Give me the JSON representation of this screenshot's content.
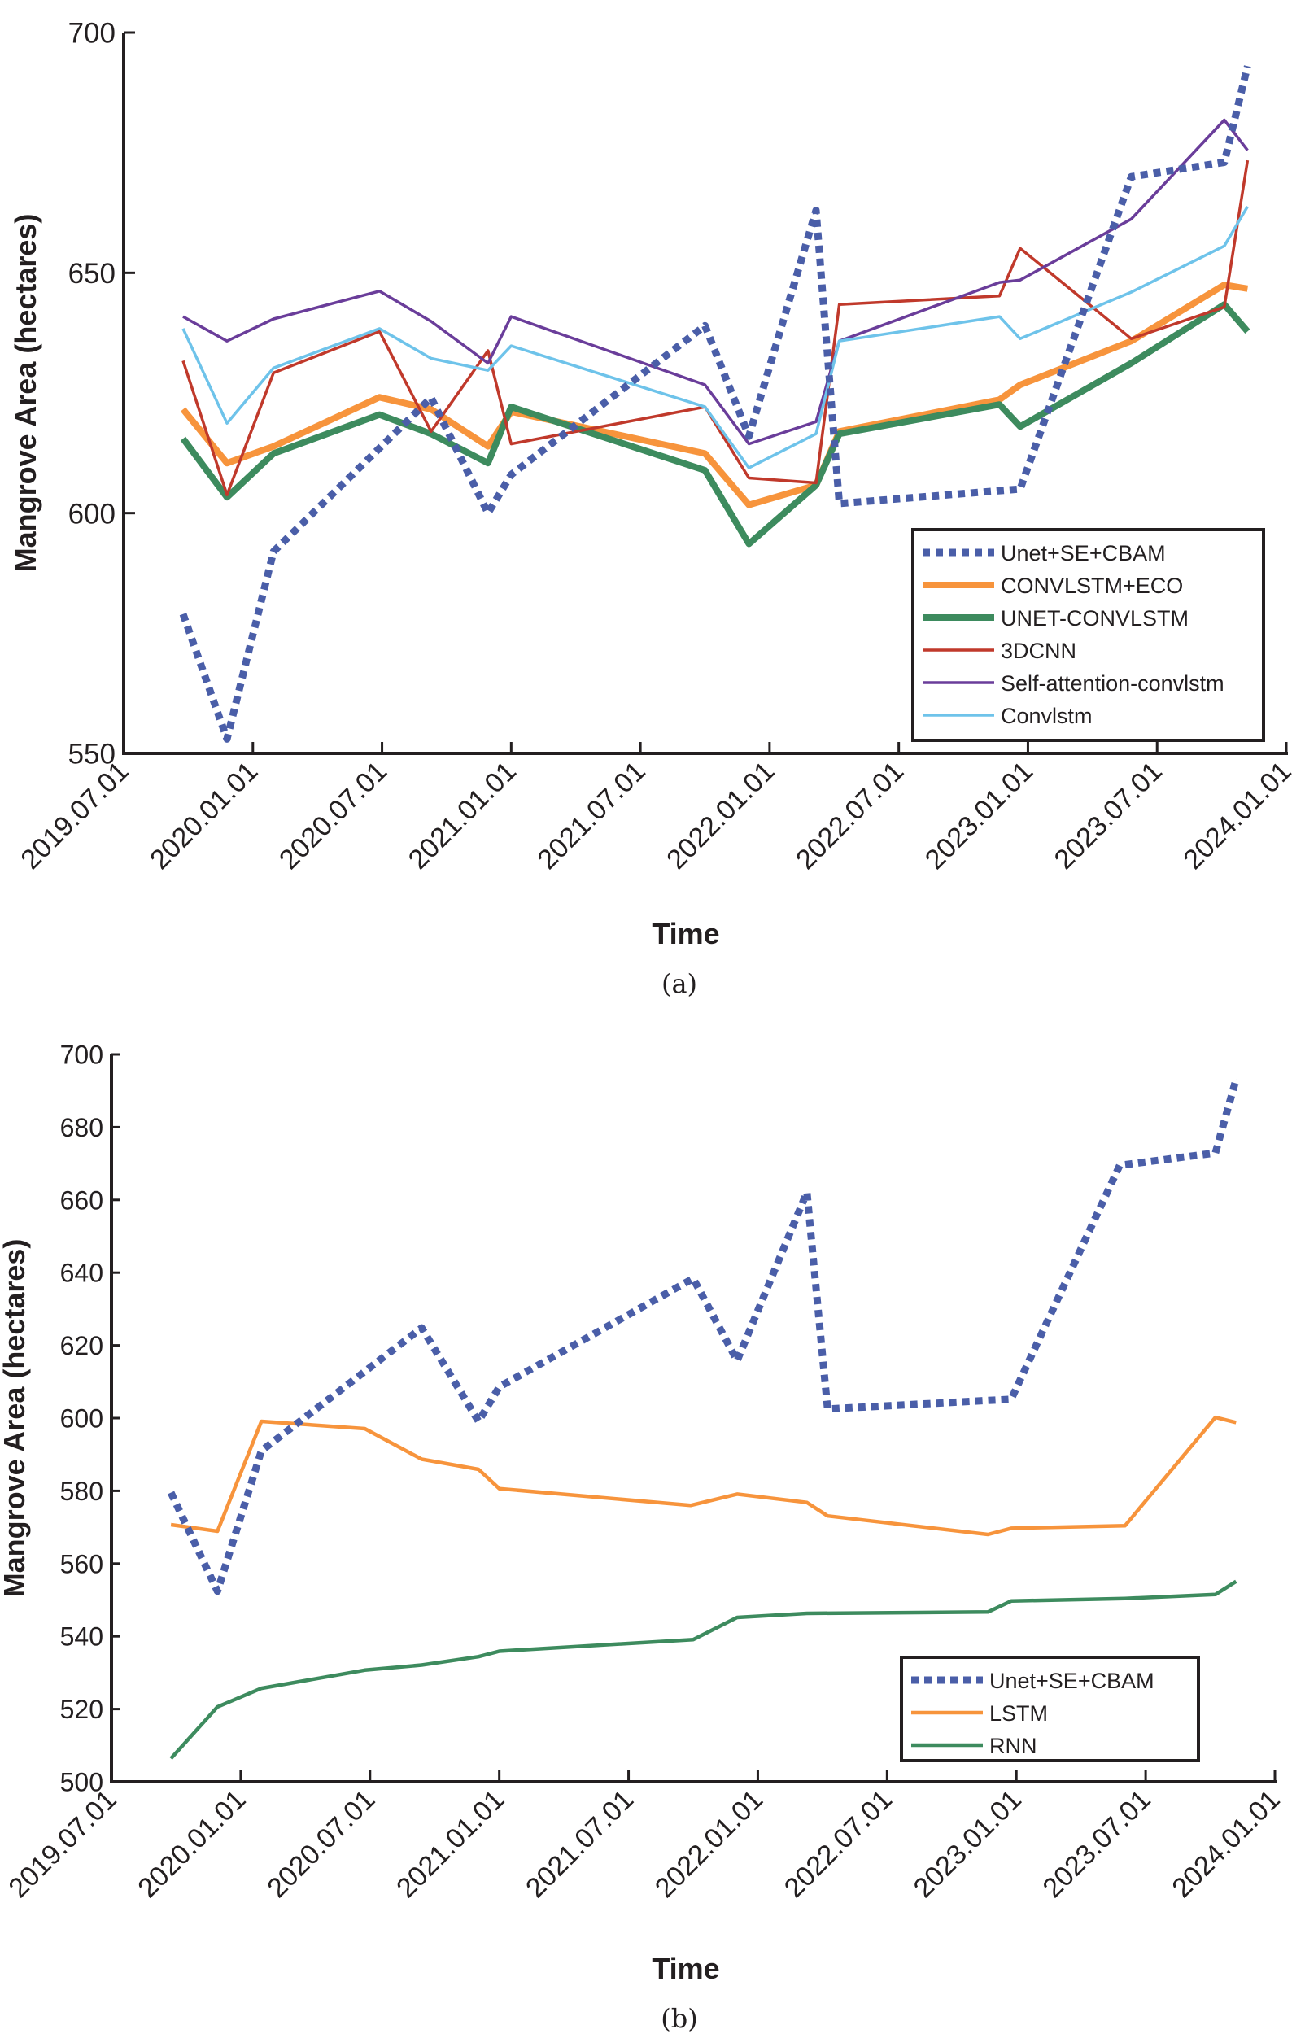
{
  "chart_data": [
    {
      "id": "a",
      "type": "line",
      "caption": "(a)",
      "xlabel": "Time",
      "ylabel": "Mangrove Area (hectares)",
      "xlim": [
        2019.5,
        2024.0
      ],
      "ylim": [
        550,
        700
      ],
      "yticks": [
        550,
        600,
        650,
        700
      ],
      "xticks": [
        {
          "value": 2019.5,
          "label": "2019.07.01"
        },
        {
          "value": 2020.0,
          "label": "2020.01.01"
        },
        {
          "value": 2020.5,
          "label": "2020.07.01"
        },
        {
          "value": 2021.0,
          "label": "2021.01.01"
        },
        {
          "value": 2021.5,
          "label": "2021.07.01"
        },
        {
          "value": 2022.0,
          "label": "2022.01.01"
        },
        {
          "value": 2022.5,
          "label": "2022.07.01"
        },
        {
          "value": 2023.0,
          "label": "2023.01.01"
        },
        {
          "value": 2023.5,
          "label": "2023.07.01"
        },
        {
          "value": 2024.0,
          "label": "2024.01.01"
        }
      ],
      "legend_position": "bottom-right",
      "grid": false,
      "series": [
        {
          "name": "Unet+SE+CBAM",
          "color": "#4a5ea8",
          "style": "dotted",
          "x": [
            2019.73,
            2019.9,
            2020.08,
            2020.69,
            2020.91,
            2021.0,
            2021.75,
            2021.92,
            2022.18,
            2022.27,
            2022.97,
            2023.4,
            2023.76,
            2023.85
          ],
          "y": [
            579,
            553,
            592,
            624,
            600,
            608,
            639,
            616,
            663,
            602,
            605,
            670,
            673,
            693
          ]
        },
        {
          "name": "CONVLSTM+ECO",
          "color": "#f7943c",
          "style": "thick",
          "x": [
            2019.73,
            2019.9,
            2020.08,
            2020.49,
            2020.69,
            2020.91,
            2021.0,
            2021.75,
            2021.92,
            2022.18,
            2022.27,
            2022.89,
            2022.97,
            2023.4,
            2023.76,
            2023.85
          ],
          "y": [
            621.6,
            610.4,
            613.9,
            624.1,
            621.6,
            613.9,
            621.1,
            612.4,
            601.7,
            605.8,
            617.0,
            623.6,
            626.7,
            635.8,
            647.5,
            646.7
          ]
        },
        {
          "name": "UNET-CONVLSTM",
          "color": "#3d8b5e",
          "style": "thick",
          "x": [
            2019.73,
            2019.9,
            2020.08,
            2020.49,
            2020.69,
            2020.91,
            2021.0,
            2021.75,
            2021.92,
            2022.18,
            2022.27,
            2022.89,
            2022.97,
            2023.4,
            2023.76,
            2023.85
          ],
          "y": [
            615.5,
            603.3,
            612.4,
            620.5,
            616.5,
            610.4,
            622.1,
            608.9,
            593.6,
            605.8,
            616.5,
            622.6,
            618.0,
            631.2,
            643.4,
            637.8
          ]
        },
        {
          "name": "3DCNN",
          "color": "#c0392b",
          "style": "thin",
          "x": [
            2019.73,
            2019.9,
            2020.08,
            2020.49,
            2020.69,
            2020.91,
            2021.0,
            2021.75,
            2021.92,
            2022.18,
            2022.27,
            2022.89,
            2022.97,
            2023.4,
            2023.76,
            2023.85
          ],
          "y": [
            631.7,
            603.8,
            629.2,
            637.8,
            617.0,
            633.8,
            614.4,
            622.1,
            607.3,
            606.3,
            643.4,
            645.2,
            655.1,
            636.3,
            642.9,
            673.4
          ]
        },
        {
          "name": "Self-attention-convlstm",
          "color": "#6a3d9a",
          "style": "thin",
          "x": [
            2019.73,
            2019.9,
            2020.08,
            2020.49,
            2020.69,
            2020.91,
            2021.0,
            2021.75,
            2021.92,
            2022.18,
            2022.27,
            2022.89,
            2022.97,
            2023.4,
            2023.76,
            2023.85
          ],
          "y": [
            640.9,
            635.8,
            640.4,
            646.2,
            639.9,
            631.2,
            640.9,
            626.7,
            614.4,
            619.0,
            635.8,
            648.0,
            648.5,
            661.2,
            681.8,
            675.5
          ]
        },
        {
          "name": "Convlstm",
          "color": "#6ec3ea",
          "style": "thin",
          "x": [
            2019.73,
            2019.9,
            2020.08,
            2020.49,
            2020.69,
            2020.91,
            2021.0,
            2021.75,
            2021.92,
            2022.18,
            2022.27,
            2022.89,
            2022.97,
            2023.4,
            2023.76,
            2023.85
          ],
          "y": [
            638.4,
            618.7,
            630.2,
            638.4,
            632.2,
            629.7,
            634.8,
            622.1,
            609.4,
            616.5,
            635.8,
            640.9,
            636.3,
            646.0,
            655.6,
            663.8
          ]
        }
      ]
    },
    {
      "id": "b",
      "type": "line",
      "caption": "(b)",
      "xlabel": "Time",
      "ylabel": "Mangrove Area (hectares)",
      "xlim": [
        2019.5,
        2024.0
      ],
      "ylim": [
        500,
        700
      ],
      "yticks": [
        500,
        520,
        540,
        560,
        580,
        600,
        620,
        640,
        660,
        680,
        700
      ],
      "xticks": [
        {
          "value": 2019.5,
          "label": "2019.07.01"
        },
        {
          "value": 2020.0,
          "label": "2020.01.01"
        },
        {
          "value": 2020.5,
          "label": "2020.07.01"
        },
        {
          "value": 2021.0,
          "label": "2021.01.01"
        },
        {
          "value": 2021.5,
          "label": "2021.07.01"
        },
        {
          "value": 2022.0,
          "label": "2022.01.01"
        },
        {
          "value": 2022.5,
          "label": "2022.07.01"
        },
        {
          "value": 2023.0,
          "label": "2023.01.01"
        },
        {
          "value": 2023.5,
          "label": "2023.07.01"
        },
        {
          "value": 2024.0,
          "label": "2024.01.01"
        }
      ],
      "legend_position": "bottom-right",
      "grid": false,
      "series": [
        {
          "name": "Unet+SE+CBAM",
          "color": "#4a5ea8",
          "style": "dotted",
          "x": [
            2019.73,
            2019.91,
            2020.08,
            2020.7,
            2020.92,
            2021.0,
            2021.75,
            2021.92,
            2022.19,
            2022.27,
            2022.98,
            2023.4,
            2023.77,
            2023.85
          ],
          "y": [
            579.5,
            552.4,
            591,
            624.8,
            599.1,
            608.6,
            638.4,
            615.8,
            662.1,
            602.5,
            605.2,
            669.5,
            672.9,
            693.2
          ]
        },
        {
          "name": "LSTM",
          "color": "#f7943c",
          "style": "medium",
          "x": [
            2019.73,
            2019.91,
            2020.08,
            2020.48,
            2020.7,
            2020.92,
            2021.0,
            2021.74,
            2021.92,
            2022.19,
            2022.27,
            2022.89,
            2022.98,
            2023.42,
            2023.77,
            2023.85
          ],
          "y": [
            570.7,
            568.9,
            599.1,
            597.1,
            588.7,
            585.9,
            580.6,
            576.0,
            579.1,
            576.8,
            573.1,
            568.0,
            569.7,
            570.4,
            600.2,
            598.8
          ]
        },
        {
          "name": "RNN",
          "color": "#3d8b5e",
          "style": "medium",
          "x": [
            2019.73,
            2019.91,
            2020.08,
            2020.48,
            2020.7,
            2020.92,
            2021.0,
            2021.75,
            2021.92,
            2022.19,
            2022.89,
            2022.98,
            2023.42,
            2023.77,
            2023.85
          ],
          "y": [
            506.4,
            520.6,
            525.7,
            530.7,
            532.1,
            534.4,
            535.9,
            539.1,
            545.2,
            546.3,
            546.7,
            549.7,
            550.4,
            551.5,
            555.1
          ]
        }
      ]
    }
  ]
}
